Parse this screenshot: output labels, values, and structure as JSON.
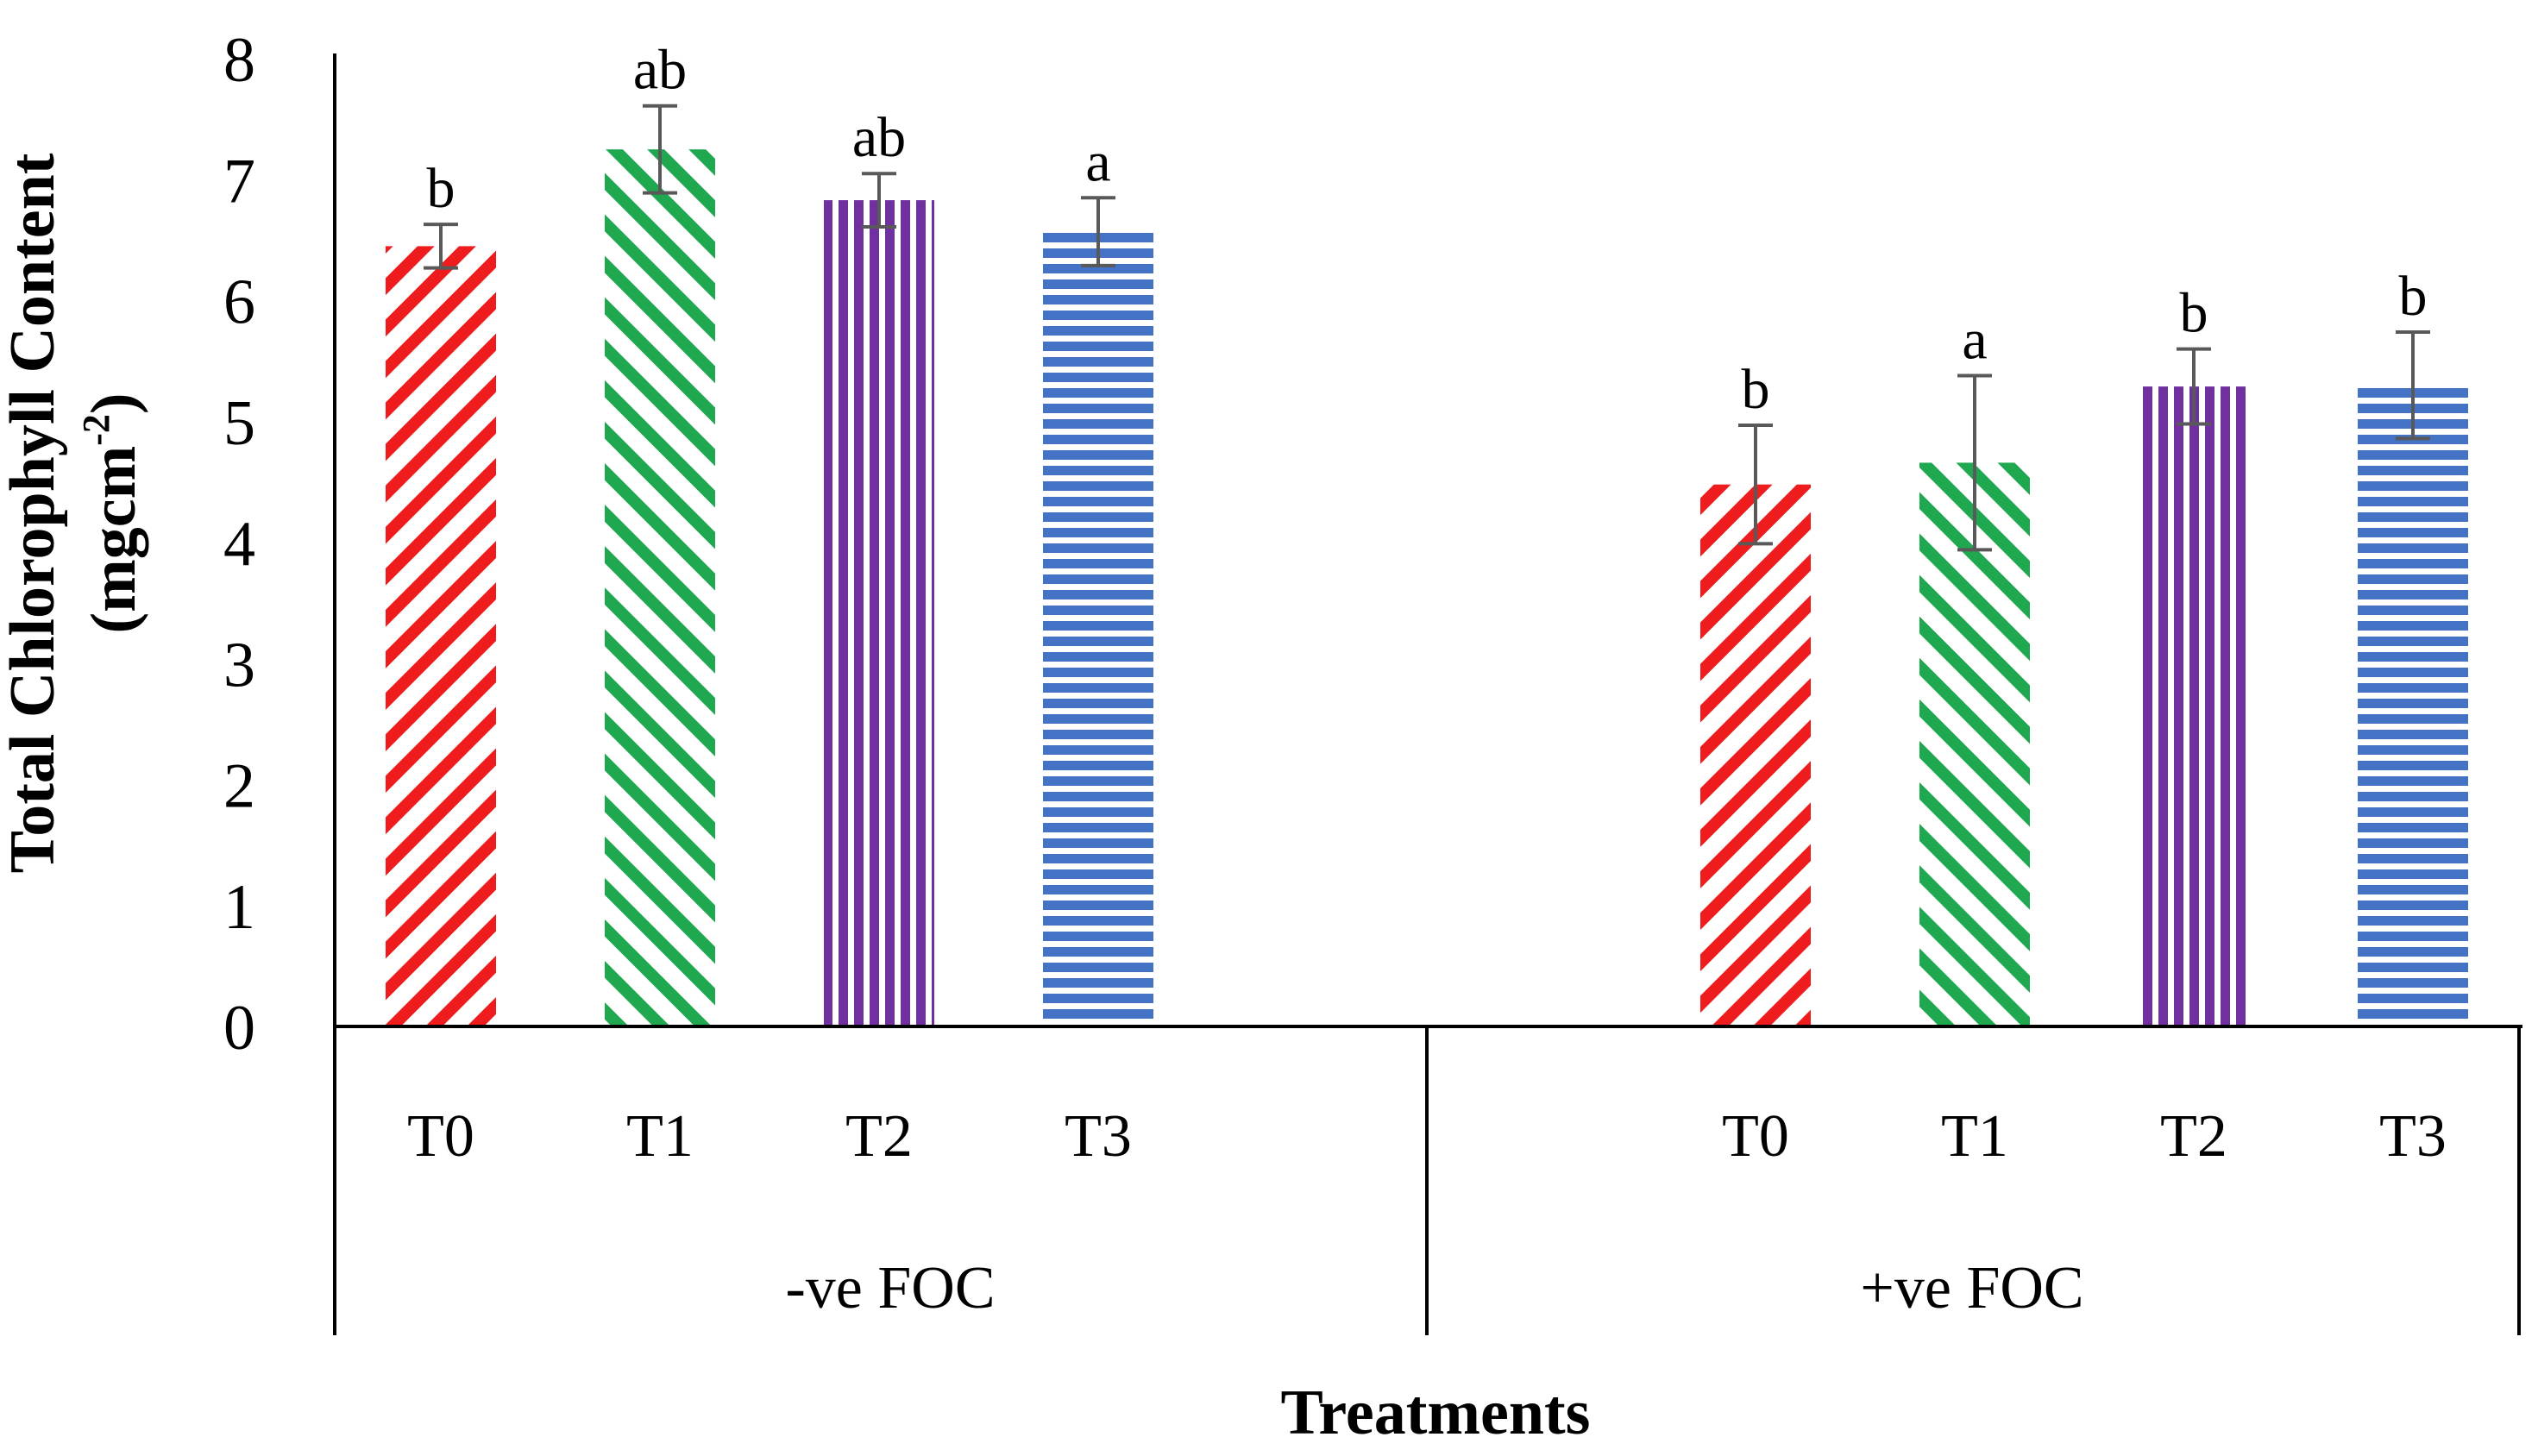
{
  "chart_data": {
    "type": "bar",
    "ylabel_line1": "Total Chlorophyll Content",
    "ylabel_line2_base": "(mgcm",
    "ylabel_line2_sup": "-2",
    "ylabel_line2_end": ")",
    "xlabel": "Treatments",
    "ylim": [
      0,
      8
    ],
    "yticks": [
      "0",
      "1",
      "2",
      "3",
      "4",
      "5",
      "6",
      "7",
      "8"
    ],
    "grid": false,
    "groups": [
      {
        "name": "-ve FOC",
        "bars": [
          {
            "category": "T0",
            "value": 6.45,
            "error": 0.18,
            "letter": "b"
          },
          {
            "category": "T1",
            "value": 7.25,
            "error": 0.36,
            "letter": "ab"
          },
          {
            "category": "T2",
            "value": 6.83,
            "error": 0.22,
            "letter": "ab"
          },
          {
            "category": "T3",
            "value": 6.57,
            "error": 0.28,
            "letter": "a"
          }
        ]
      },
      {
        "name": "+ve FOC",
        "bars": [
          {
            "category": "T0",
            "value": 4.48,
            "error": 0.49,
            "letter": "b"
          },
          {
            "category": "T1",
            "value": 4.66,
            "error": 0.72,
            "letter": "a"
          },
          {
            "category": "T2",
            "value": 5.29,
            "error": 0.31,
            "letter": "b"
          },
          {
            "category": "T3",
            "value": 5.3,
            "error": 0.44,
            "letter": "b"
          }
        ]
      }
    ],
    "series_colors": {
      "T0": "#ee1c1c",
      "T1": "#1fa84f",
      "T2": "#7030a0",
      "T3": "#4472c4"
    }
  }
}
